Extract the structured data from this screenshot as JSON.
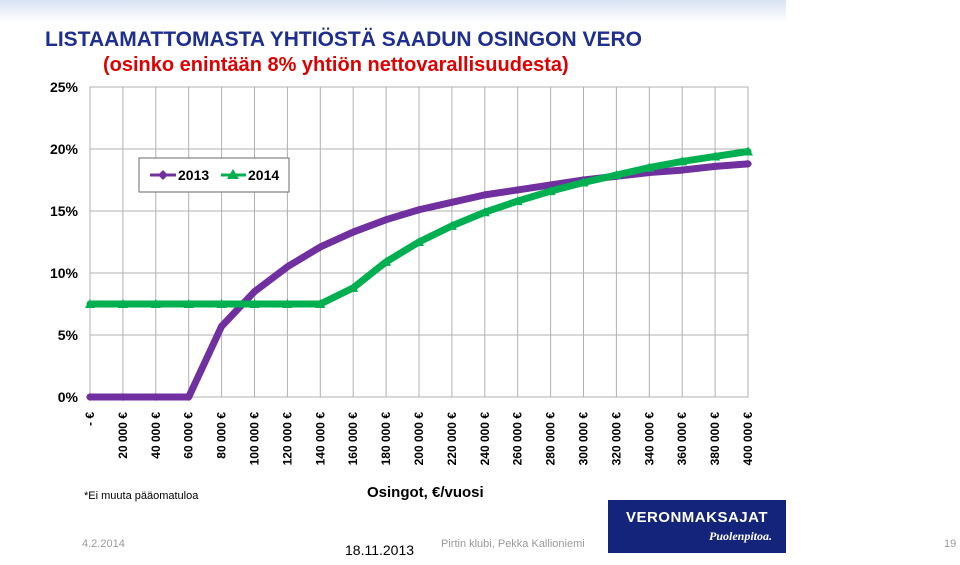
{
  "slide": {
    "title_line1": "LISTAAMATTOMASTA YHTIÖSTÄ SAADUN OSINGON VERO",
    "title_line2": "(osinko enintään 8% yhtiön nettovarallisuudesta)",
    "footnote": "*Ei muuta pääomatuloa",
    "date_stamp": "18.11.2013"
  },
  "footer": {
    "date": "4.2.2014",
    "presenter": "Pirtin klubi, Pekka Kallioniemi",
    "page_number": "19"
  },
  "logo": {
    "name": "VERONMAKSAJAT",
    "tagline": "Puolenpitoa."
  },
  "chart_data": {
    "type": "line",
    "xlabel": "Osingot, €/vuosi",
    "ylabel": "",
    "x": [
      0,
      20000,
      40000,
      60000,
      80000,
      100000,
      120000,
      140000,
      160000,
      180000,
      200000,
      220000,
      240000,
      260000,
      280000,
      300000,
      320000,
      340000,
      360000,
      380000,
      400000
    ],
    "x_tick_labels": [
      "- €",
      "20 000 €",
      "40 000 €",
      "60 000 €",
      "80 000 €",
      "100 000 €",
      "120 000 €",
      "140 000 €",
      "160 000 €",
      "180 000 €",
      "200 000 €",
      "220 000 €",
      "240 000 €",
      "260 000 €",
      "280 000 €",
      "300 000 €",
      "320 000 €",
      "340 000 €",
      "360 000 €",
      "380 000 €",
      "400 000 €"
    ],
    "y_tick_labels": [
      "0%",
      "5%",
      "10%",
      "15%",
      "20%",
      "25%"
    ],
    "y_ticks": [
      0,
      5,
      10,
      15,
      20,
      25
    ],
    "xlim": [
      0,
      400000
    ],
    "ylim": [
      0,
      25
    ],
    "grid": true,
    "legend_position": "top-left",
    "series": [
      {
        "name": "2013",
        "color": "#7030a0",
        "values": [
          0,
          0,
          0,
          0,
          5.7,
          8.5,
          10.5,
          12.1,
          13.3,
          14.3,
          15.1,
          15.7,
          16.3,
          16.7,
          17.1,
          17.5,
          17.8,
          18.1,
          18.3,
          18.6,
          18.8
        ]
      },
      {
        "name": "2014",
        "color": "#00b050",
        "values": [
          7.5,
          7.5,
          7.5,
          7.5,
          7.5,
          7.5,
          7.5,
          7.5,
          8.8,
          10.9,
          12.5,
          13.8,
          14.9,
          15.8,
          16.6,
          17.3,
          17.9,
          18.5,
          19.0,
          19.4,
          19.8
        ]
      }
    ]
  }
}
